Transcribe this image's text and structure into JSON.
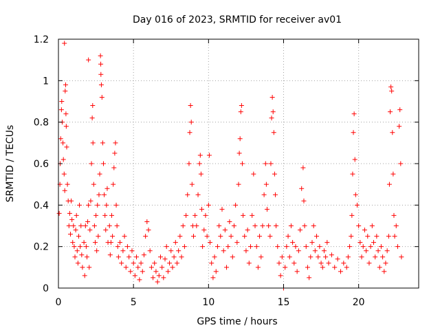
{
  "chart_data": {
    "type": "scatter",
    "title": "Day 016 of 2023, SRMTID for receiver av01",
    "xlabel": "GPS time / hours",
    "ylabel": "SRMTID / TECUs",
    "xlim": [
      0,
      24
    ],
    "ylim": [
      0,
      1.2
    ],
    "x_ticks": [
      0,
      5,
      10,
      15,
      20
    ],
    "x_tick_labels": [
      "0",
      "5",
      "10",
      "15",
      "20"
    ],
    "y_ticks": [
      0,
      0.2,
      0.4,
      0.6,
      0.8,
      1,
      1.2
    ],
    "y_tick_labels": [
      "0",
      "0.2",
      "0.4",
      "0.6",
      "0.8",
      "1",
      "1.2"
    ],
    "grid": true,
    "marker": "+",
    "series": [
      {
        "name": "SRMTID",
        "color": "#ff0000",
        "points": [
          [
            0.05,
            0.36
          ],
          [
            0.1,
            0.5
          ],
          [
            0.12,
            0.6
          ],
          [
            0.15,
            0.72
          ],
          [
            0.2,
            0.86
          ],
          [
            0.22,
            0.9
          ],
          [
            0.25,
            0.8
          ],
          [
            0.3,
            0.7
          ],
          [
            0.33,
            0.62
          ],
          [
            0.38,
            0.55
          ],
          [
            0.42,
            0.47
          ],
          [
            0.45,
            0.95
          ],
          [
            0.48,
            0.98
          ],
          [
            0.5,
            0.84
          ],
          [
            0.52,
            0.78
          ],
          [
            0.55,
            0.68
          ],
          [
            0.6,
            0.5
          ],
          [
            0.65,
            0.42
          ],
          [
            0.7,
            0.3
          ],
          [
            0.75,
            0.36
          ],
          [
            0.8,
            0.26
          ],
          [
            0.85,
            0.42
          ],
          [
            0.9,
            0.33
          ],
          [
            0.95,
            0.22
          ],
          [
            1.0,
            0.3
          ],
          [
            1.05,
            0.2
          ],
          [
            1.1,
            0.15
          ],
          [
            1.15,
            0.28
          ],
          [
            1.2,
            0.35
          ],
          [
            1.25,
            0.18
          ],
          [
            1.3,
            0.12
          ],
          [
            1.35,
            0.25
          ],
          [
            1.4,
            0.4
          ],
          [
            1.45,
            0.2
          ],
          [
            1.5,
            0.3
          ],
          [
            1.55,
            0.16
          ],
          [
            1.6,
            0.1
          ],
          [
            1.7,
            0.22
          ],
          [
            1.75,
            0.06
          ],
          [
            1.8,
            0.3
          ],
          [
            1.85,
            0.2
          ],
          [
            1.9,
            0.15
          ],
          [
            1.95,
            0.32
          ],
          [
            2.0,
            0.4
          ],
          [
            2.05,
            0.1
          ],
          [
            2.1,
            0.28
          ],
          [
            2.15,
            0.42
          ],
          [
            2.2,
            0.6
          ],
          [
            2.25,
            0.82
          ],
          [
            2.28,
            0.88
          ],
          [
            2.3,
            0.7
          ],
          [
            2.35,
            0.5
          ],
          [
            2.4,
            0.3
          ],
          [
            2.45,
            0.22
          ],
          [
            2.5,
            0.35
          ],
          [
            2.55,
            0.18
          ],
          [
            2.6,
            0.4
          ],
          [
            2.65,
            0.25
          ],
          [
            2.7,
            0.45
          ],
          [
            2.75,
            0.55
          ],
          [
            2.8,
            1.12
          ],
          [
            2.83,
            1.03
          ],
          [
            2.86,
            0.98
          ],
          [
            2.9,
            0.92
          ],
          [
            2.95,
            0.7
          ],
          [
            3.0,
            0.6
          ],
          [
            3.05,
            0.45
          ],
          [
            3.1,
            0.35
          ],
          [
            3.15,
            0.28
          ],
          [
            3.2,
            0.4
          ],
          [
            3.25,
            0.48
          ],
          [
            3.3,
            0.22
          ],
          [
            3.4,
            0.3
          ],
          [
            3.45,
            0.16
          ],
          [
            3.5,
            0.22
          ],
          [
            3.55,
            0.35
          ],
          [
            3.6,
            0.25
          ],
          [
            3.65,
            0.5
          ],
          [
            3.7,
            0.58
          ],
          [
            3.75,
            0.65
          ],
          [
            3.8,
            0.7
          ],
          [
            3.85,
            0.4
          ],
          [
            3.9,
            0.3
          ],
          [
            3.95,
            0.2
          ],
          [
            4.0,
            0.15
          ],
          [
            4.1,
            0.22
          ],
          [
            4.2,
            0.12
          ],
          [
            4.3,
            0.18
          ],
          [
            4.4,
            0.25
          ],
          [
            4.5,
            0.1
          ],
          [
            4.6,
            0.2
          ],
          [
            4.7,
            0.15
          ],
          [
            4.8,
            0.08
          ],
          [
            4.9,
            0.18
          ],
          [
            5.0,
            0.12
          ],
          [
            5.1,
            0.06
          ],
          [
            5.2,
            0.15
          ],
          [
            5.3,
            0.1
          ],
          [
            5.4,
            0.04
          ],
          [
            5.5,
            0.12
          ],
          [
            5.6,
            0.08
          ],
          [
            5.7,
            0.16
          ],
          [
            5.8,
            0.25
          ],
          [
            5.9,
            0.32
          ],
          [
            6.0,
            0.28
          ],
          [
            6.1,
            0.18
          ],
          [
            6.2,
            0.1
          ],
          [
            6.3,
            0.05
          ],
          [
            6.4,
            0.12
          ],
          [
            6.5,
            0.08
          ],
          [
            6.6,
            0.03
          ],
          [
            6.7,
            0.06
          ],
          [
            6.8,
            0.15
          ],
          [
            6.9,
            0.1
          ],
          [
            7.0,
            0.05
          ],
          [
            7.1,
            0.14
          ],
          [
            7.2,
            0.2
          ],
          [
            7.3,
            0.08
          ],
          [
            7.4,
            0.12
          ],
          [
            7.5,
            0.18
          ],
          [
            7.6,
            0.1
          ],
          [
            7.7,
            0.15
          ],
          [
            7.8,
            0.22
          ],
          [
            7.9,
            0.12
          ],
          [
            8.0,
            0.18
          ],
          [
            8.1,
            0.25
          ],
          [
            8.2,
            0.15
          ],
          [
            8.3,
            0.3
          ],
          [
            8.4,
            0.2
          ],
          [
            8.5,
            0.35
          ],
          [
            8.6,
            0.45
          ],
          [
            8.7,
            0.6
          ],
          [
            8.75,
            0.75
          ],
          [
            8.8,
            0.88
          ],
          [
            8.85,
            0.8
          ],
          [
            8.9,
            0.5
          ],
          [
            8.95,
            0.3
          ],
          [
            9.0,
            0.25
          ],
          [
            9.1,
            0.35
          ],
          [
            9.2,
            0.3
          ],
          [
            9.3,
            0.45
          ],
          [
            9.4,
            0.6
          ],
          [
            9.45,
            0.64
          ],
          [
            9.5,
            0.55
          ],
          [
            9.55,
            0.38
          ],
          [
            9.6,
            0.2
          ],
          [
            9.7,
            0.28
          ],
          [
            9.8,
            0.35
          ],
          [
            9.9,
            0.25
          ],
          [
            10.0,
            0.4
          ],
          [
            10.05,
            0.64
          ],
          [
            10.1,
            0.22
          ],
          [
            10.2,
            0.12
          ],
          [
            10.3,
            0.05
          ],
          [
            10.4,
            0.15
          ],
          [
            10.5,
            0.08
          ],
          [
            10.6,
            0.2
          ],
          [
            10.7,
            0.3
          ],
          [
            10.8,
            0.25
          ],
          [
            10.9,
            0.38
          ],
          [
            11.0,
            0.18
          ],
          [
            11.1,
            0.28
          ],
          [
            11.2,
            0.1
          ],
          [
            11.3,
            0.2
          ],
          [
            11.4,
            0.32
          ],
          [
            11.5,
            0.25
          ],
          [
            11.6,
            0.15
          ],
          [
            11.7,
            0.3
          ],
          [
            11.8,
            0.4
          ],
          [
            11.9,
            0.22
          ],
          [
            12.0,
            0.5
          ],
          [
            12.05,
            0.65
          ],
          [
            12.1,
            0.72
          ],
          [
            12.15,
            0.85
          ],
          [
            12.2,
            0.88
          ],
          [
            12.25,
            0.6
          ],
          [
            12.3,
            0.35
          ],
          [
            12.4,
            0.25
          ],
          [
            12.5,
            0.18
          ],
          [
            12.6,
            0.28
          ],
          [
            12.7,
            0.12
          ],
          [
            12.8,
            0.2
          ],
          [
            12.9,
            0.35
          ],
          [
            13.0,
            0.55
          ],
          [
            13.1,
            0.3
          ],
          [
            13.2,
            0.2
          ],
          [
            13.3,
            0.1
          ],
          [
            13.4,
            0.25
          ],
          [
            13.5,
            0.15
          ],
          [
            13.6,
            0.3
          ],
          [
            13.7,
            0.45
          ],
          [
            13.8,
            0.6
          ],
          [
            13.85,
            0.5
          ],
          [
            13.9,
            0.38
          ],
          [
            14.0,
            0.3
          ],
          [
            14.1,
            0.25
          ],
          [
            14.15,
            0.6
          ],
          [
            14.2,
            0.82
          ],
          [
            14.25,
            0.92
          ],
          [
            14.3,
            0.85
          ],
          [
            14.35,
            0.75
          ],
          [
            14.4,
            0.55
          ],
          [
            14.45,
            0.45
          ],
          [
            14.5,
            0.3
          ],
          [
            14.6,
            0.2
          ],
          [
            14.7,
            0.12
          ],
          [
            14.8,
            0.06
          ],
          [
            14.9,
            0.15
          ],
          [
            15.0,
            0.0
          ],
          [
            15.1,
            0.1
          ],
          [
            15.2,
            0.2
          ],
          [
            15.3,
            0.25
          ],
          [
            15.4,
            0.15
          ],
          [
            15.5,
            0.3
          ],
          [
            15.6,
            0.22
          ],
          [
            15.7,
            0.12
          ],
          [
            15.8,
            0.2
          ],
          [
            15.9,
            0.08
          ],
          [
            16.0,
            0.18
          ],
          [
            16.1,
            0.28
          ],
          [
            16.2,
            0.48
          ],
          [
            16.3,
            0.58
          ],
          [
            16.35,
            0.42
          ],
          [
            16.4,
            0.3
          ],
          [
            16.5,
            0.2
          ],
          [
            16.6,
            0.1
          ],
          [
            16.7,
            0.05
          ],
          [
            16.8,
            0.15
          ],
          [
            16.9,
            0.22
          ],
          [
            17.0,
            0.3
          ],
          [
            17.1,
            0.18
          ],
          [
            17.2,
            0.25
          ],
          [
            17.3,
            0.15
          ],
          [
            17.4,
            0.2
          ],
          [
            17.5,
            0.12
          ],
          [
            17.6,
            0.1
          ],
          [
            17.7,
            0.18
          ],
          [
            17.8,
            0.15
          ],
          [
            17.9,
            0.22
          ],
          [
            18.0,
            0.12
          ],
          [
            18.2,
            0.16
          ],
          [
            18.4,
            0.1
          ],
          [
            18.6,
            0.14
          ],
          [
            18.8,
            0.08
          ],
          [
            19.0,
            0.12
          ],
          [
            19.2,
            0.1
          ],
          [
            19.3,
            0.15
          ],
          [
            19.4,
            0.2
          ],
          [
            19.5,
            0.25
          ],
          [
            19.55,
            0.35
          ],
          [
            19.6,
            0.55
          ],
          [
            19.65,
            0.75
          ],
          [
            19.7,
            0.84
          ],
          [
            19.75,
            0.62
          ],
          [
            19.8,
            0.45
          ],
          [
            19.9,
            0.4
          ],
          [
            20.0,
            0.3
          ],
          [
            20.1,
            0.22
          ],
          [
            20.2,
            0.15
          ],
          [
            20.3,
            0.2
          ],
          [
            20.4,
            0.28
          ],
          [
            20.5,
            0.18
          ],
          [
            20.6,
            0.25
          ],
          [
            20.7,
            0.12
          ],
          [
            20.8,
            0.2
          ],
          [
            20.9,
            0.3
          ],
          [
            21.0,
            0.22
          ],
          [
            21.1,
            0.15
          ],
          [
            21.2,
            0.25
          ],
          [
            21.3,
            0.18
          ],
          [
            21.4,
            0.1
          ],
          [
            21.5,
            0.2
          ],
          [
            21.6,
            0.15
          ],
          [
            21.7,
            0.08
          ],
          [
            21.8,
            0.12
          ],
          [
            21.9,
            0.18
          ],
          [
            22.0,
            0.25
          ],
          [
            22.05,
            0.5
          ],
          [
            22.1,
            0.85
          ],
          [
            22.15,
            0.97
          ],
          [
            22.2,
            0.95
          ],
          [
            22.25,
            0.75
          ],
          [
            22.3,
            0.55
          ],
          [
            22.35,
            0.35
          ],
          [
            22.4,
            0.25
          ],
          [
            22.5,
            0.3
          ],
          [
            22.6,
            0.2
          ],
          [
            22.7,
            0.78
          ],
          [
            22.75,
            0.86
          ],
          [
            22.8,
            0.6
          ],
          [
            22.85,
            0.15
          ],
          [
            0.4,
            1.18
          ],
          [
            2.0,
            1.1
          ],
          [
            2.82,
            1.08
          ]
        ]
      }
    ]
  }
}
